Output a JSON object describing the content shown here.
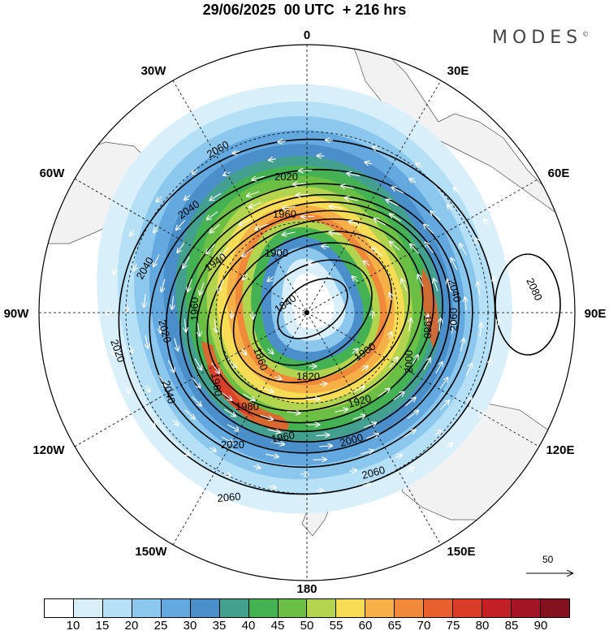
{
  "title": "29/06/2025  00 UTC  + 216 hrs",
  "brand": "MODES",
  "brand_mark": "©",
  "longitude_labels": {
    "n": "0",
    "ne": "30E",
    "e1": "60E",
    "e": "90E",
    "se1": "120E",
    "se": "150E",
    "s": "180",
    "sw": "150W",
    "sw1": "120W",
    "w": "90W",
    "nw1": "60W",
    "nw": "30W"
  },
  "contour_labels": [
    "2060",
    "2020",
    "2040",
    "1960",
    "1900",
    "1940",
    "2040",
    "2040",
    "1840",
    "1960",
    "2080",
    "2060",
    "2020",
    "1960",
    "1860",
    "1820",
    "1900",
    "2000",
    "2040",
    "1960",
    "1980",
    "1920",
    "1960",
    "2000",
    "2020",
    "2020",
    "2060",
    "2060",
    "2060"
  ],
  "reference_vector": "50",
  "colorbar": {
    "labels": [
      "10",
      "15",
      "20",
      "25",
      "30",
      "35",
      "40",
      "45",
      "50",
      "55",
      "60",
      "65",
      "70",
      "75",
      "80",
      "85",
      "90"
    ],
    "colors": [
      "#ffffff",
      "#d9f0fb",
      "#b5e0f6",
      "#8cc8ee",
      "#63a9df",
      "#4a8fc9",
      "#44a08e",
      "#44b152",
      "#6bbf45",
      "#b2d44e",
      "#f7dc55",
      "#f5b148",
      "#f08a3a",
      "#e8602d",
      "#d93d2a",
      "#c21f27",
      "#a31525",
      "#83121e"
    ]
  },
  "colors": {
    "land": "#f2f2f2",
    "ocean": "#ffffff",
    "contour": "#000000",
    "grid": "#000000",
    "vectors": "#ffffff"
  }
}
